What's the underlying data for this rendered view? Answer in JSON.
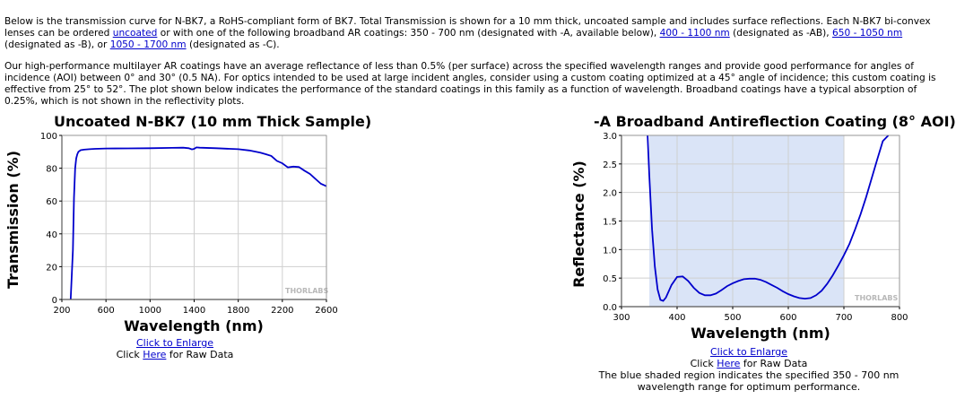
{
  "intro": {
    "p1_a": "Below is the transmission curve for N-BK7, a RoHS-compliant form of BK7. Total Transmission is shown for a 10 mm thick, uncoated sample and includes surface reflections. Each N-BK7 bi-convex lenses can be ordered ",
    "link_uncoated": "uncoated",
    "p1_b": " or with one of the following broadband AR coatings: 350 - 700 nm (designated with -A, available below), ",
    "link_ab": "400 - 1100 nm",
    "p1_c": " (designated as -AB), ",
    "link_b": "650 - 1050 nm",
    "p1_d": " (designated as -B), or ",
    "link_c": "1050 - 1700 nm",
    "p1_e": " (designated as -C).",
    "p2": "Our high-performance multilayer AR coatings have an average reflectance of less than 0.5% (per surface) across the specified wavelength ranges and provide good performance for angles of incidence (AOI) between 0° and 30° (0.5 NA). For optics intended to be used at large incident angles, consider using a custom coating optimized at a 45° angle of incidence; this custom coating is effective from 25° to 52°. The plot shown below indicates the performance of the standard coatings in this family as a function of wavelength. Broadband coatings have a typical absorption of 0.25%, which is not shown in the reflectivity plots."
  },
  "left_caption": {
    "enlarge": "Click to Enlarge",
    "raw_prefix": "Click ",
    "raw_link": "Here",
    "raw_suffix": " for Raw Data"
  },
  "right_caption": {
    "enlarge": "Click to Enlarge",
    "raw_prefix": "Click ",
    "raw_link": "Here",
    "raw_suffix": " for Raw Data",
    "note": "The blue shaded region indicates the specified 350 - 700 nm wavelength range for optimum performance."
  },
  "watermark": "THORLABS",
  "colors": {
    "curve": "#0000cc",
    "shade": "#dae4f7",
    "grid": "#cfcfcf",
    "link": "#0000cc"
  },
  "chart_data": [
    {
      "type": "line",
      "title": "Uncoated N-BK7 (10 mm Thick Sample)",
      "xlabel": "Wavelength (nm)",
      "ylabel": "Transmission (%)",
      "xlim": [
        200,
        2600
      ],
      "ylim": [
        0,
        100
      ],
      "xticks": [
        200,
        600,
        1000,
        1400,
        1800,
        2200,
        2600
      ],
      "yticks": [
        0,
        20,
        40,
        60,
        80,
        100
      ],
      "grid": true,
      "series": [
        {
          "x": [
            280,
            300,
            310,
            320,
            330,
            340,
            350,
            370,
            400,
            450,
            500,
            600,
            800,
            1000,
            1200,
            1300,
            1350,
            1380,
            1400,
            1420,
            1450,
            1600,
            1800,
            1900,
            2000,
            2050,
            2100,
            2150,
            2200,
            2250,
            2300,
            2350,
            2400,
            2450,
            2500,
            2550,
            2600
          ],
          "y": [
            0,
            30,
            62,
            80,
            86,
            88.5,
            90,
            91,
            91.3,
            91.6,
            91.8,
            92,
            92.1,
            92.2,
            92.4,
            92.5,
            92.2,
            91.5,
            91.8,
            92.7,
            92.5,
            92.2,
            91.6,
            90.8,
            89.5,
            88.5,
            87.5,
            84.5,
            83,
            80.5,
            81,
            80.7,
            78.5,
            76.5,
            73.5,
            70.5,
            69
          ]
        }
      ]
    },
    {
      "type": "line",
      "title": "-A Broadband Antireflection Coating (8° AOI)",
      "xlabel": "Wavelength (nm)",
      "ylabel": "Reflectance (%)",
      "xlim": [
        300,
        800
      ],
      "ylim": [
        0,
        3
      ],
      "xticks": [
        300,
        400,
        500,
        600,
        700,
        800
      ],
      "yticks": [
        0.0,
        0.5,
        1.0,
        1.5,
        2.0,
        2.5,
        3.0
      ],
      "grid": true,
      "shaded_range": [
        350,
        700
      ],
      "series": [
        {
          "x": [
            347,
            350,
            355,
            360,
            365,
            370,
            375,
            380,
            390,
            400,
            410,
            420,
            430,
            440,
            450,
            460,
            470,
            480,
            490,
            500,
            510,
            520,
            530,
            540,
            550,
            560,
            570,
            580,
            590,
            600,
            610,
            620,
            630,
            640,
            650,
            660,
            670,
            680,
            690,
            700,
            710,
            720,
            730,
            740,
            750,
            760,
            770,
            780
          ],
          "y": [
            3.0,
            2.3,
            1.35,
            0.7,
            0.3,
            0.12,
            0.1,
            0.16,
            0.38,
            0.52,
            0.53,
            0.45,
            0.33,
            0.24,
            0.2,
            0.2,
            0.23,
            0.29,
            0.36,
            0.41,
            0.45,
            0.48,
            0.49,
            0.49,
            0.47,
            0.43,
            0.38,
            0.33,
            0.27,
            0.22,
            0.18,
            0.15,
            0.14,
            0.15,
            0.2,
            0.28,
            0.4,
            0.55,
            0.72,
            0.9,
            1.1,
            1.35,
            1.62,
            1.92,
            2.25,
            2.58,
            2.9,
            3.0
          ]
        }
      ]
    }
  ]
}
